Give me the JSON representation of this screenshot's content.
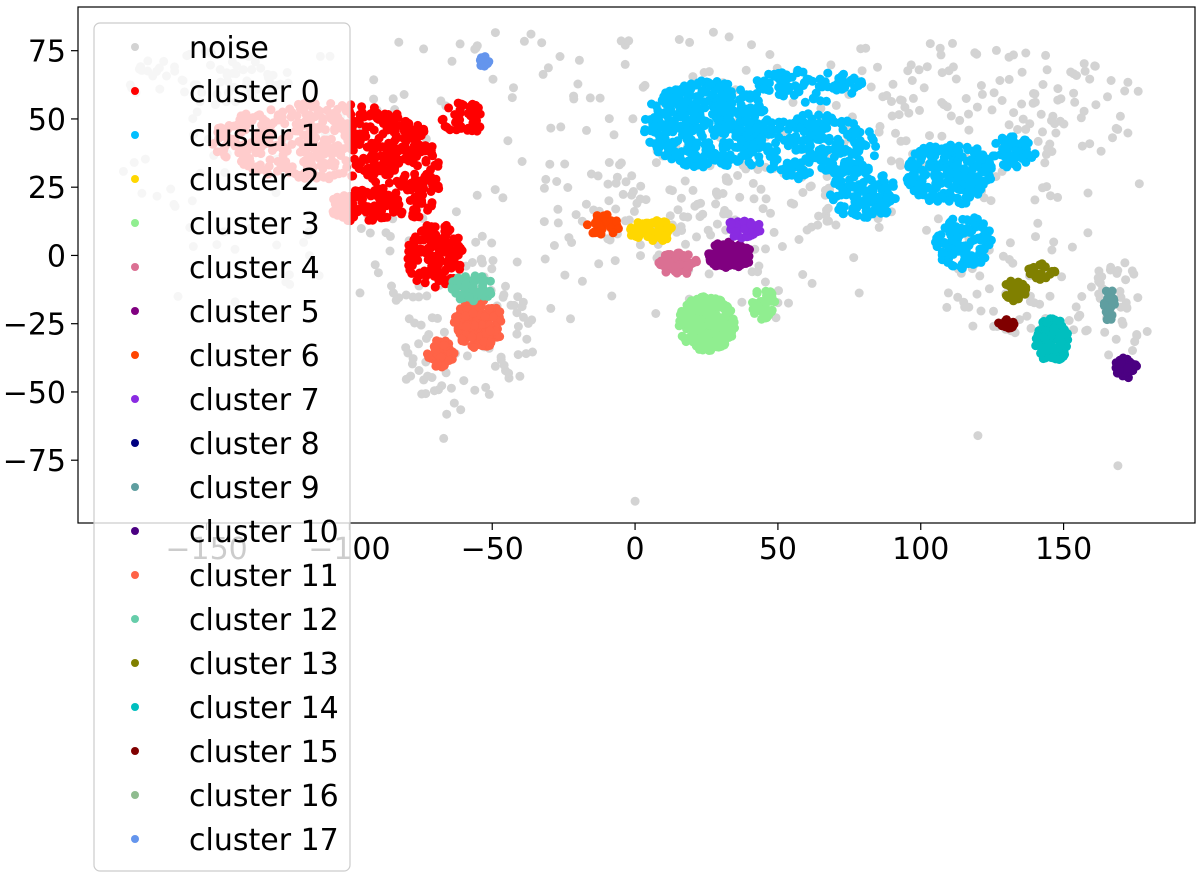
{
  "chart_data": {
    "type": "scatter",
    "title": "",
    "xlabel": "",
    "ylabel": "",
    "xlim": [
      -195,
      196
    ],
    "ylim": [
      -98,
      91
    ],
    "xticks": [
      -150,
      -100,
      -50,
      0,
      50,
      100,
      150
    ],
    "yticks": [
      75,
      50,
      25,
      0,
      -25,
      -50,
      -75
    ],
    "xtick_labels": [
      "−150",
      "−100",
      "−50",
      "0",
      "50",
      "100",
      "150"
    ],
    "ytick_labels": [
      "75",
      "50",
      "25",
      "0",
      "−25",
      "−50",
      "−75"
    ],
    "grid": false,
    "legend_placement": "upper-left",
    "series": [
      {
        "name": "noise",
        "color": "#d3d3d3",
        "regions": [
          {
            "cx": 0,
            "cy": 30,
            "rx": 180,
            "ry": 55,
            "n": 320
          },
          {
            "cx": 120,
            "cy": 55,
            "rx": 60,
            "ry": 25,
            "n": 120
          },
          {
            "cx": -60,
            "cy": -30,
            "rx": 25,
            "ry": 30,
            "n": 80
          },
          {
            "cx": -150,
            "cy": 65,
            "rx": 30,
            "ry": 10,
            "n": 60
          },
          {
            "cx": 25,
            "cy": 20,
            "rx": 50,
            "ry": 20,
            "n": 100
          },
          {
            "cx": 140,
            "cy": -15,
            "rx": 40,
            "ry": 15,
            "n": 60
          },
          {
            "cx": 170,
            "cy": -25,
            "rx": 10,
            "ry": 25,
            "n": 30
          }
        ],
        "points": [
          [
            0,
            -90
          ],
          [
            -67,
            -67
          ],
          [
            120,
            -66
          ],
          [
            169,
            -77
          ],
          [
            -155,
            20
          ],
          [
            -160,
            -15
          ],
          [
            -140,
            -17
          ]
        ]
      },
      {
        "name": "cluster 0",
        "color": "#ff0000",
        "regions": [
          {
            "cx": -110,
            "cy": 42,
            "rx": 38,
            "ry": 14,
            "n": 420
          },
          {
            "cx": -80,
            "cy": 30,
            "rx": 12,
            "ry": 18,
            "n": 140
          },
          {
            "cx": -95,
            "cy": 18,
            "rx": 12,
            "ry": 6,
            "n": 90
          },
          {
            "cx": -70,
            "cy": 0,
            "rx": 10,
            "ry": 12,
            "n": 120
          },
          {
            "cx": -60,
            "cy": 50,
            "rx": 8,
            "ry": 6,
            "n": 40
          }
        ],
        "points": []
      },
      {
        "name": "cluster 1",
        "color": "#00bfff",
        "regions": [
          {
            "cx": 25,
            "cy": 48,
            "rx": 22,
            "ry": 16,
            "n": 420
          },
          {
            "cx": 60,
            "cy": 40,
            "rx": 25,
            "ry": 12,
            "n": 220
          },
          {
            "cx": 80,
            "cy": 23,
            "rx": 12,
            "ry": 10,
            "n": 120
          },
          {
            "cx": 110,
            "cy": 30,
            "rx": 15,
            "ry": 12,
            "n": 200
          },
          {
            "cx": 115,
            "cy": 5,
            "rx": 10,
            "ry": 10,
            "n": 110
          },
          {
            "cx": 133,
            "cy": 38,
            "rx": 8,
            "ry": 6,
            "n": 60
          },
          {
            "cx": 60,
            "cy": 62,
            "rx": 20,
            "ry": 6,
            "n": 80
          }
        ],
        "points": []
      },
      {
        "name": "cluster 2",
        "color": "#ffd700",
        "regions": [
          {
            "cx": 6,
            "cy": 9,
            "rx": 8,
            "ry": 4,
            "n": 70
          }
        ],
        "points": []
      },
      {
        "name": "cluster 3",
        "color": "#90ee90",
        "regions": [
          {
            "cx": 25,
            "cy": -25,
            "rx": 10,
            "ry": 10,
            "n": 220
          },
          {
            "cx": 45,
            "cy": -18,
            "rx": 4,
            "ry": 6,
            "n": 40
          }
        ],
        "points": []
      },
      {
        "name": "cluster 4",
        "color": "#db7093",
        "regions": [
          {
            "cx": 15,
            "cy": -3,
            "rx": 7,
            "ry": 4,
            "n": 60
          }
        ],
        "points": []
      },
      {
        "name": "cluster 5",
        "color": "#800080",
        "regions": [
          {
            "cx": 33,
            "cy": 0,
            "rx": 8,
            "ry": 5,
            "n": 90
          }
        ],
        "points": []
      },
      {
        "name": "cluster 6",
        "color": "#ff4500",
        "regions": [
          {
            "cx": -11,
            "cy": 11,
            "rx": 6,
            "ry": 4,
            "n": 40
          }
        ],
        "points": []
      },
      {
        "name": "cluster 7",
        "color": "#8a2be2",
        "regions": [
          {
            "cx": 38,
            "cy": 10,
            "rx": 6,
            "ry": 4,
            "n": 45
          }
        ],
        "points": []
      },
      {
        "name": "cluster 8",
        "color": "#000080",
        "regions": [],
        "points": []
      },
      {
        "name": "cluster 9",
        "color": "#5f9ea0",
        "regions": [
          {
            "cx": 166,
            "cy": -18,
            "rx": 2,
            "ry": 6,
            "n": 25
          }
        ],
        "points": []
      },
      {
        "name": "cluster 10",
        "color": "#4b0082",
        "regions": [
          {
            "cx": 172,
            "cy": -41,
            "rx": 4,
            "ry": 4,
            "n": 40
          }
        ],
        "points": []
      },
      {
        "name": "cluster 11",
        "color": "#ff6347",
        "regions": [
          {
            "cx": -55,
            "cy": -25,
            "rx": 9,
            "ry": 9,
            "n": 150
          },
          {
            "cx": -68,
            "cy": -36,
            "rx": 5,
            "ry": 5,
            "n": 60
          }
        ],
        "points": []
      },
      {
        "name": "cluster 12",
        "color": "#66cdaa",
        "regions": [
          {
            "cx": -57,
            "cy": -12,
            "rx": 8,
            "ry": 5,
            "n": 60
          }
        ],
        "points": []
      },
      {
        "name": "cluster 13",
        "color": "#808000",
        "regions": [
          {
            "cx": 142,
            "cy": -6,
            "rx": 5,
            "ry": 3,
            "n": 30
          },
          {
            "cx": 133,
            "cy": -13,
            "rx": 4,
            "ry": 4,
            "n": 25
          }
        ],
        "points": []
      },
      {
        "name": "cluster 14",
        "color": "#00bfbf",
        "regions": [
          {
            "cx": 146,
            "cy": -31,
            "rx": 6,
            "ry": 8,
            "n": 110
          }
        ],
        "points": []
      },
      {
        "name": "cluster 15",
        "color": "#800000",
        "regions": [
          {
            "cx": 130,
            "cy": -25,
            "rx": 3,
            "ry": 2,
            "n": 20
          }
        ],
        "points": []
      },
      {
        "name": "cluster 16",
        "color": "#8fbc8f",
        "regions": [],
        "points": []
      },
      {
        "name": "cluster 17",
        "color": "#6495ed",
        "regions": [
          {
            "cx": -53,
            "cy": 71,
            "rx": 2,
            "ry": 2,
            "n": 15
          }
        ],
        "points": []
      }
    ]
  }
}
